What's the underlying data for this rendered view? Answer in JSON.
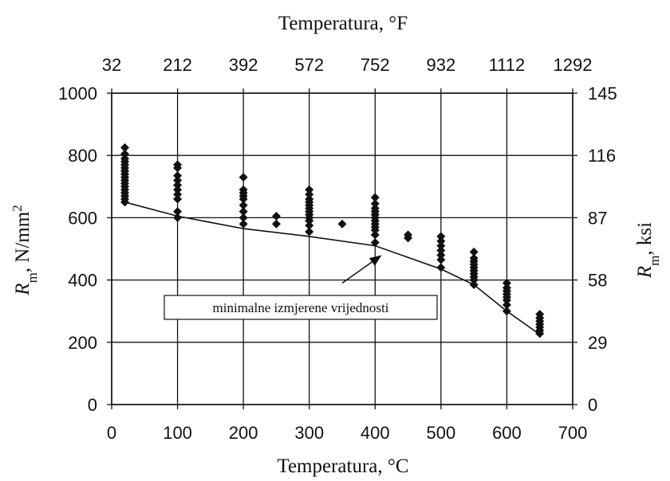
{
  "chart_data": {
    "type": "scatter",
    "title": "",
    "x_bottom": {
      "label": "Temperatura, °C",
      "range": [
        0,
        700
      ],
      "ticks": [
        "0",
        "100",
        "200",
        "300",
        "400",
        "500",
        "600",
        "700"
      ]
    },
    "x_top": {
      "label": "Temperatura, °F",
      "ticks": [
        "32",
        "212",
        "392",
        "572",
        "752",
        "932",
        "1112",
        "1292"
      ]
    },
    "y_left": {
      "label_main": "R",
      "label_sub": "m",
      "label_rest": ", N/mm",
      "label_sup": "2",
      "range": [
        0,
        1000
      ],
      "ticks": [
        "0",
        "200",
        "400",
        "600",
        "800",
        "1000"
      ]
    },
    "y_right": {
      "label_main": "R",
      "label_sub": "m",
      "label_rest": ", ksi",
      "ticks": [
        "0",
        "29",
        "58",
        "87",
        "116",
        "145"
      ]
    },
    "grid": true,
    "annotation": "minimalne izmjerene vrijednosti",
    "scatter_points": [
      {
        "x": 20,
        "y": 825
      },
      {
        "x": 20,
        "y": 805
      },
      {
        "x": 20,
        "y": 790
      },
      {
        "x": 20,
        "y": 780
      },
      {
        "x": 20,
        "y": 770
      },
      {
        "x": 20,
        "y": 760
      },
      {
        "x": 20,
        "y": 750
      },
      {
        "x": 20,
        "y": 740
      },
      {
        "x": 20,
        "y": 730
      },
      {
        "x": 20,
        "y": 720
      },
      {
        "x": 20,
        "y": 710
      },
      {
        "x": 20,
        "y": 700
      },
      {
        "x": 20,
        "y": 690
      },
      {
        "x": 20,
        "y": 680
      },
      {
        "x": 20,
        "y": 670
      },
      {
        "x": 20,
        "y": 660
      },
      {
        "x": 20,
        "y": 650
      },
      {
        "x": 100,
        "y": 770
      },
      {
        "x": 100,
        "y": 760
      },
      {
        "x": 100,
        "y": 735
      },
      {
        "x": 100,
        "y": 720
      },
      {
        "x": 100,
        "y": 705
      },
      {
        "x": 100,
        "y": 690
      },
      {
        "x": 100,
        "y": 675
      },
      {
        "x": 100,
        "y": 660
      },
      {
        "x": 100,
        "y": 620
      },
      {
        "x": 100,
        "y": 600
      },
      {
        "x": 200,
        "y": 730
      },
      {
        "x": 200,
        "y": 690
      },
      {
        "x": 200,
        "y": 680
      },
      {
        "x": 200,
        "y": 670
      },
      {
        "x": 200,
        "y": 660
      },
      {
        "x": 200,
        "y": 640
      },
      {
        "x": 200,
        "y": 620
      },
      {
        "x": 200,
        "y": 600
      },
      {
        "x": 200,
        "y": 580
      },
      {
        "x": 250,
        "y": 605
      },
      {
        "x": 250,
        "y": 580
      },
      {
        "x": 300,
        "y": 690
      },
      {
        "x": 300,
        "y": 675
      },
      {
        "x": 300,
        "y": 660
      },
      {
        "x": 300,
        "y": 650
      },
      {
        "x": 300,
        "y": 640
      },
      {
        "x": 300,
        "y": 630
      },
      {
        "x": 300,
        "y": 620
      },
      {
        "x": 300,
        "y": 610
      },
      {
        "x": 300,
        "y": 600
      },
      {
        "x": 300,
        "y": 590
      },
      {
        "x": 300,
        "y": 575
      },
      {
        "x": 300,
        "y": 555
      },
      {
        "x": 350,
        "y": 580
      },
      {
        "x": 400,
        "y": 665
      },
      {
        "x": 400,
        "y": 645
      },
      {
        "x": 400,
        "y": 630
      },
      {
        "x": 400,
        "y": 620
      },
      {
        "x": 400,
        "y": 610
      },
      {
        "x": 400,
        "y": 600
      },
      {
        "x": 400,
        "y": 590
      },
      {
        "x": 400,
        "y": 580
      },
      {
        "x": 400,
        "y": 570
      },
      {
        "x": 400,
        "y": 560
      },
      {
        "x": 400,
        "y": 545
      },
      {
        "x": 400,
        "y": 520
      },
      {
        "x": 450,
        "y": 545
      },
      {
        "x": 450,
        "y": 535
      },
      {
        "x": 500,
        "y": 540
      },
      {
        "x": 500,
        "y": 525
      },
      {
        "x": 500,
        "y": 510
      },
      {
        "x": 500,
        "y": 495
      },
      {
        "x": 500,
        "y": 480
      },
      {
        "x": 500,
        "y": 465
      },
      {
        "x": 500,
        "y": 440
      },
      {
        "x": 550,
        "y": 490
      },
      {
        "x": 550,
        "y": 470
      },
      {
        "x": 550,
        "y": 460
      },
      {
        "x": 550,
        "y": 450
      },
      {
        "x": 550,
        "y": 440
      },
      {
        "x": 550,
        "y": 430
      },
      {
        "x": 550,
        "y": 420
      },
      {
        "x": 550,
        "y": 410
      },
      {
        "x": 550,
        "y": 400
      },
      {
        "x": 550,
        "y": 385
      },
      {
        "x": 600,
        "y": 390
      },
      {
        "x": 600,
        "y": 375
      },
      {
        "x": 600,
        "y": 365
      },
      {
        "x": 600,
        "y": 355
      },
      {
        "x": 600,
        "y": 345
      },
      {
        "x": 600,
        "y": 335
      },
      {
        "x": 600,
        "y": 320
      },
      {
        "x": 600,
        "y": 300
      },
      {
        "x": 650,
        "y": 290
      },
      {
        "x": 650,
        "y": 278
      },
      {
        "x": 650,
        "y": 268
      },
      {
        "x": 650,
        "y": 258
      },
      {
        "x": 650,
        "y": 248
      },
      {
        "x": 650,
        "y": 238
      },
      {
        "x": 650,
        "y": 228
      }
    ],
    "min_line": [
      {
        "x": 20,
        "y": 650
      },
      {
        "x": 100,
        "y": 605
      },
      {
        "x": 200,
        "y": 565
      },
      {
        "x": 300,
        "y": 540
      },
      {
        "x": 400,
        "y": 510
      },
      {
        "x": 500,
        "y": 435
      },
      {
        "x": 550,
        "y": 385
      },
      {
        "x": 600,
        "y": 300
      },
      {
        "x": 650,
        "y": 225
      }
    ],
    "arrow": {
      "from": {
        "x": 350,
        "y": 390
      },
      "to": {
        "x": 410,
        "y": 480
      }
    }
  }
}
